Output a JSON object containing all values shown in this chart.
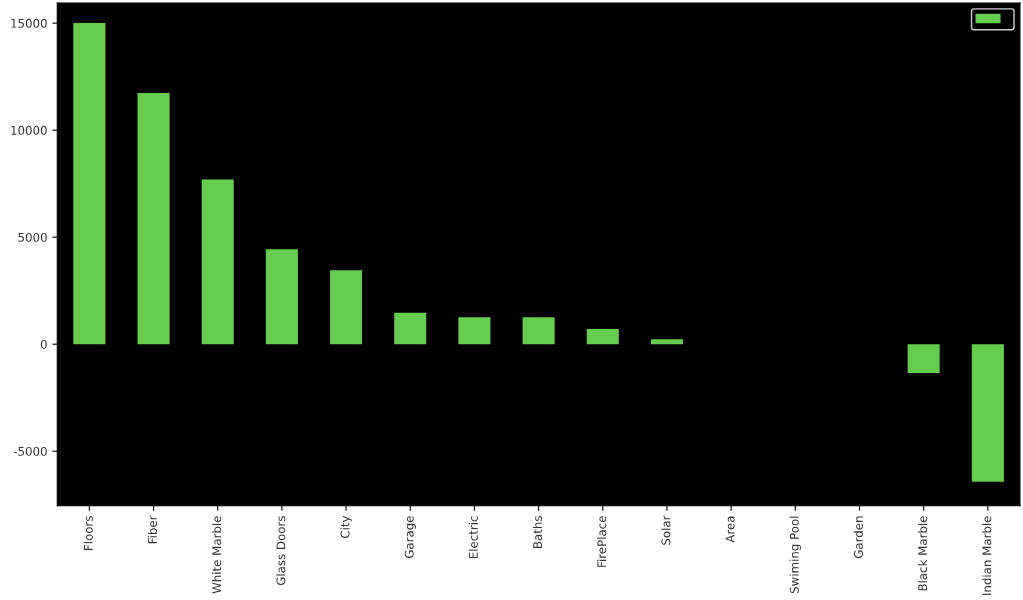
{
  "chart_data": {
    "type": "bar",
    "categories": [
      "Floors",
      "Fiber",
      "White Marble",
      "Glass Doors",
      "City",
      "Garage",
      "Electric",
      "Baths",
      "FirePlace",
      "Solar",
      "Area",
      "Swiming Pool",
      "Garden",
      "Black Marble",
      "Indian Marble"
    ],
    "series": [
      {
        "color": "#66cc50",
        "values": [
          15000,
          11730,
          7690,
          4440,
          3460,
          1470,
          1260,
          1260,
          710,
          230,
          0,
          0,
          0,
          -1350,
          -6430
        ]
      }
    ],
    "ylim": [
      -7550,
      15940
    ],
    "yticks": [
      -5000,
      0,
      5000,
      10000,
      15000
    ],
    "grid": false
  }
}
